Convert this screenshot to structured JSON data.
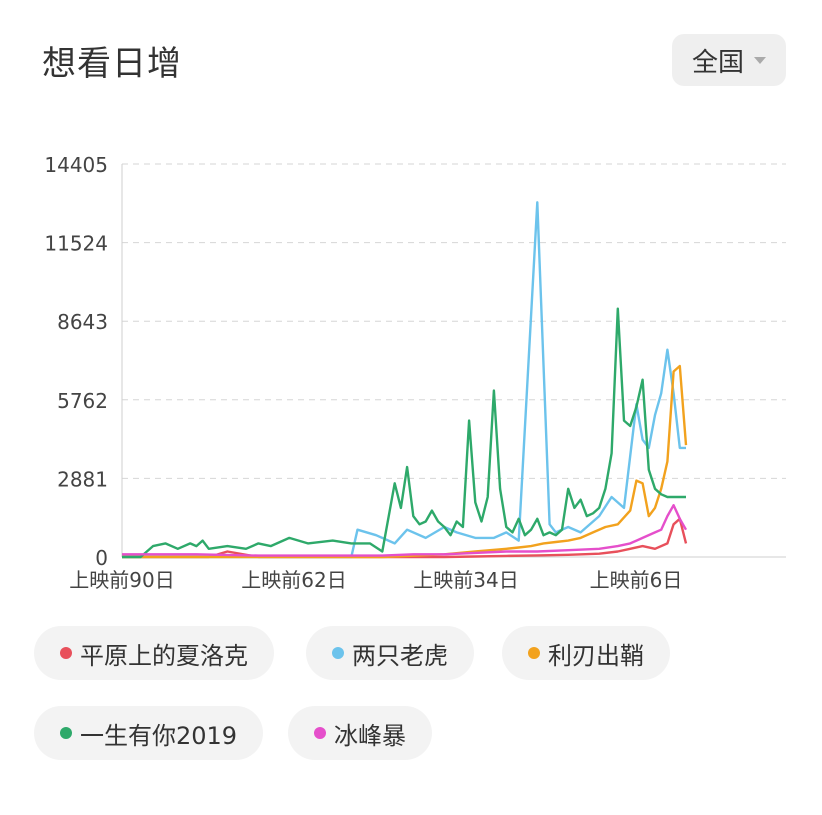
{
  "header": {
    "title": "想看日增",
    "region_label": "全国"
  },
  "chart_data": {
    "type": "line",
    "ylim": [
      0,
      14405
    ],
    "yticks": [
      "0",
      "2881",
      "5762",
      "8643",
      "11524",
      "14405"
    ],
    "xticks": [
      "上映前90日",
      "上映前62日",
      "上映前34日",
      "上映前6日"
    ],
    "grid": true,
    "legend_position": "bottom",
    "x_range": [
      -92,
      -1
    ],
    "series": [
      {
        "name": "平原上的夏洛克",
        "color": "#e8505b",
        "x": [
          -92,
          -85,
          -78,
          -75,
          -70,
          -60,
          -50,
          -45,
          -40,
          -35,
          -30,
          -25,
          -20,
          -15,
          -12,
          -10,
          -8,
          -6,
          -4,
          -3,
          -2,
          -1
        ],
        "y": [
          0,
          0,
          0,
          200,
          0,
          0,
          0,
          0,
          0,
          20,
          40,
          60,
          80,
          120,
          200,
          300,
          400,
          300,
          500,
          1200,
          1400,
          500
        ]
      },
      {
        "name": "两只老虎",
        "color": "#6cc3ec",
        "x": [
          -92,
          -55,
          -54,
          -51,
          -48,
          -46,
          -43,
          -40,
          -38,
          -35,
          -32,
          -30,
          -28,
          -25,
          -23,
          -22,
          -20,
          -18,
          -15,
          -13,
          -11,
          -9,
          -8,
          -7,
          -6,
          -5,
          -4,
          -3,
          -2,
          -1
        ],
        "y": [
          0,
          0,
          1000,
          800,
          500,
          1000,
          700,
          1100,
          900,
          700,
          700,
          900,
          600,
          13000,
          1200,
          900,
          1100,
          900,
          1500,
          2200,
          1800,
          5600,
          4300,
          4000,
          5200,
          6000,
          7600,
          6000,
          4000,
          4000
        ]
      },
      {
        "name": "利刃出鞘",
        "color": "#f2a21e",
        "x": [
          -92,
          -60,
          -50,
          -40,
          -35,
          -30,
          -28,
          -26,
          -24,
          -22,
          -20,
          -18,
          -16,
          -14,
          -12,
          -10,
          -9,
          -8,
          -7,
          -6,
          -5,
          -4,
          -3,
          -2,
          -1
        ],
        "y": [
          0,
          0,
          0,
          100,
          200,
          300,
          350,
          400,
          500,
          550,
          600,
          700,
          900,
          1100,
          1200,
          1700,
          2800,
          2700,
          1500,
          1800,
          2500,
          3500,
          6800,
          7000,
          4100
        ]
      },
      {
        "name": "一生有你2019",
        "color": "#2ea96a",
        "x": [
          -92,
          -89,
          -87,
          -85,
          -83,
          -81,
          -80,
          -79,
          -78,
          -75,
          -72,
          -70,
          -68,
          -65,
          -62,
          -58,
          -55,
          -52,
          -50,
          -48,
          -47,
          -46,
          -45,
          -44,
          -43,
          -42,
          -41,
          -40,
          -39,
          -38,
          -37,
          -36,
          -35,
          -34,
          -33,
          -32,
          -31,
          -30,
          -29,
          -28,
          -27,
          -26,
          -25,
          -24,
          -23,
          -22,
          -21,
          -20,
          -19,
          -18,
          -17,
          -16,
          -15,
          -14,
          -13,
          -12,
          -11,
          -10,
          -9,
          -8,
          -7,
          -6,
          -5,
          -4,
          -3,
          -2,
          -1
        ],
        "y": [
          0,
          0,
          400,
          500,
          300,
          500,
          400,
          600,
          300,
          400,
          300,
          500,
          400,
          700,
          500,
          600,
          500,
          500,
          200,
          2700,
          1800,
          3300,
          1500,
          1200,
          1300,
          1700,
          1300,
          1100,
          800,
          1300,
          1100,
          5000,
          2000,
          1300,
          2200,
          6100,
          2500,
          1100,
          900,
          1400,
          800,
          1000,
          1400,
          800,
          900,
          800,
          1000,
          2500,
          1800,
          2100,
          1500,
          1600,
          1800,
          2500,
          3800,
          9100,
          5000,
          4800,
          5500,
          6500,
          3200,
          2500,
          2300,
          2200,
          2200,
          2200,
          2200
        ]
      },
      {
        "name": "冰峰暴",
        "color": "#e54fcb",
        "x": [
          -92,
          -85,
          -80,
          -70,
          -60,
          -50,
          -45,
          -40,
          -35,
          -30,
          -25,
          -20,
          -15,
          -12,
          -10,
          -8,
          -6,
          -5,
          -4,
          -3,
          -2,
          -1
        ],
        "y": [
          100,
          100,
          100,
          50,
          50,
          50,
          100,
          100,
          150,
          200,
          200,
          250,
          300,
          400,
          500,
          700,
          900,
          1000,
          1500,
          1900,
          1400,
          1000
        ]
      }
    ]
  },
  "legend": {
    "items": [
      {
        "label": "平原上的夏洛克",
        "color": "#e8505b"
      },
      {
        "label": "两只老虎",
        "color": "#6cc3ec"
      },
      {
        "label": "利刃出鞘",
        "color": "#f2a21e"
      },
      {
        "label": "一生有你2019",
        "color": "#2ea96a"
      },
      {
        "label": "冰峰暴",
        "color": "#e54fcb"
      }
    ]
  }
}
